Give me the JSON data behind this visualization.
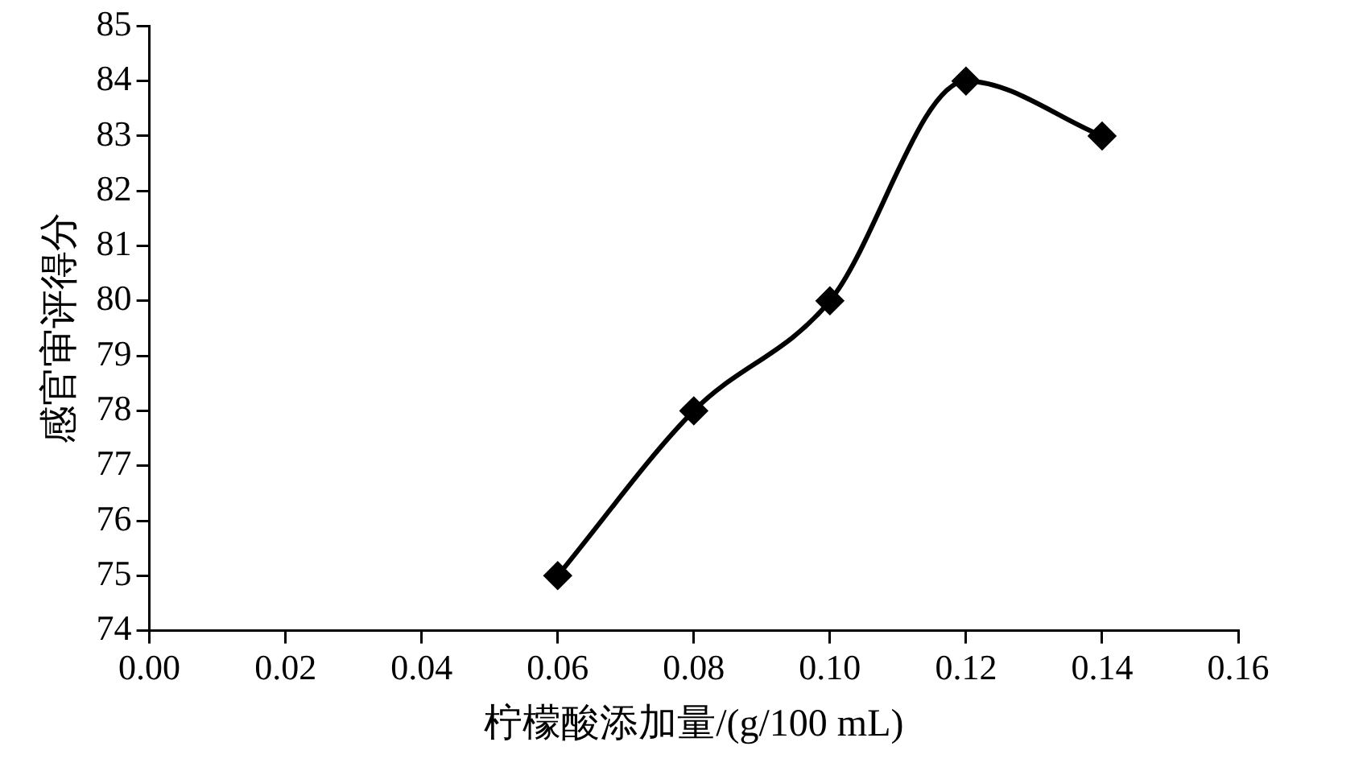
{
  "chart_data": {
    "type": "line",
    "xlabel": "柠檬酸添加量/(g/100 mL)",
    "ylabel": "感官审评得分",
    "x": [
      0.06,
      0.08,
      0.1,
      0.12,
      0.14
    ],
    "series": [
      {
        "color": "#000000",
        "values": [
          75,
          78,
          80,
          84,
          83
        ]
      }
    ],
    "xlim": [
      0,
      0.16
    ],
    "xticks": [
      {
        "value": 0,
        "label": "0.00"
      },
      {
        "value": 0.02,
        "label": "0.02"
      },
      {
        "value": 0.04,
        "label": "0.04"
      },
      {
        "value": 0.06,
        "label": "0.06"
      },
      {
        "value": 0.08,
        "label": "0.08"
      },
      {
        "value": 0.1,
        "label": "0.10"
      },
      {
        "value": 0.12,
        "label": "0.12"
      },
      {
        "value": 0.14,
        "label": "0.14"
      },
      {
        "value": 0.16,
        "label": "0.16"
      }
    ],
    "ylim": [
      74,
      85
    ],
    "yticks": [
      74,
      75,
      76,
      77,
      78,
      79,
      80,
      81,
      82,
      83,
      84,
      85
    ],
    "grid": false,
    "legend": false,
    "marker": "diamond",
    "line_style": "solid"
  }
}
